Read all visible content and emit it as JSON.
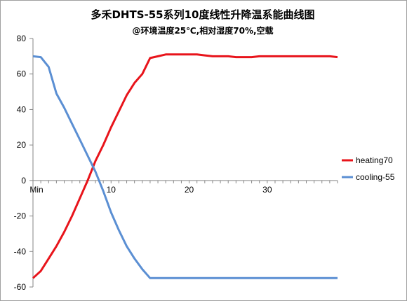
{
  "chart_data": {
    "type": "line",
    "title": "多禾DHTS-55系列10度线性升降温系能曲线图",
    "subtitle": "@环境温度25℃,相对湿度70%,空载",
    "xlabel": "",
    "ylabel": "",
    "xlim": [
      0,
      39
    ],
    "ylim": [
      -60,
      80
    ],
    "y_ticks": [
      "80",
      "60",
      "40",
      "20",
      "0",
      "-20",
      "-40",
      "-60"
    ],
    "x_ticks": [
      {
        "value": 0,
        "label": "Min"
      },
      {
        "value": 10,
        "label": "10"
      },
      {
        "value": 20,
        "label": "20"
      },
      {
        "value": 30,
        "label": "30"
      }
    ],
    "grid": false,
    "legend_position": "right",
    "series": [
      {
        "name": "heating70",
        "color": "#e8141b",
        "points": [
          [
            0,
            -55
          ],
          [
            1,
            -51
          ],
          [
            2,
            -44
          ],
          [
            3,
            -37
          ],
          [
            4,
            -29
          ],
          [
            5,
            -20
          ],
          [
            6,
            -10
          ],
          [
            7,
            0
          ],
          [
            8,
            11
          ],
          [
            9,
            20
          ],
          [
            10,
            30
          ],
          [
            11,
            39
          ],
          [
            12,
            48
          ],
          [
            13,
            55
          ],
          [
            14,
            60
          ],
          [
            15,
            69
          ],
          [
            16,
            70
          ],
          [
            17,
            71
          ],
          [
            18,
            71
          ],
          [
            19,
            71
          ],
          [
            20,
            71
          ],
          [
            21,
            71
          ],
          [
            22,
            70.5
          ],
          [
            23,
            70
          ],
          [
            24,
            70
          ],
          [
            25,
            70
          ],
          [
            26,
            69.5
          ],
          [
            27,
            69.5
          ],
          [
            28,
            69.5
          ],
          [
            29,
            70
          ],
          [
            30,
            70
          ],
          [
            31,
            70
          ],
          [
            32,
            70
          ],
          [
            33,
            70
          ],
          [
            34,
            70
          ],
          [
            35,
            70
          ],
          [
            36,
            70
          ],
          [
            37,
            70
          ],
          [
            38,
            70
          ],
          [
            39,
            69.5
          ]
        ]
      },
      {
        "name": "cooling-55",
        "color": "#5b8fd3",
        "points": [
          [
            0,
            70
          ],
          [
            1,
            69.5
          ],
          [
            2,
            64
          ],
          [
            3,
            49
          ],
          [
            4,
            41
          ],
          [
            5,
            32
          ],
          [
            6,
            23
          ],
          [
            7,
            14
          ],
          [
            8,
            5
          ],
          [
            9,
            -6
          ],
          [
            10,
            -18
          ],
          [
            11,
            -28
          ],
          [
            12,
            -37
          ],
          [
            13,
            -44
          ],
          [
            14,
            -50
          ],
          [
            15,
            -55
          ],
          [
            16,
            -55
          ],
          [
            17,
            -55
          ],
          [
            18,
            -55
          ],
          [
            19,
            -55
          ],
          [
            20,
            -55
          ],
          [
            21,
            -55
          ],
          [
            22,
            -55
          ],
          [
            23,
            -55
          ],
          [
            24,
            -55
          ],
          [
            25,
            -55
          ],
          [
            26,
            -55
          ],
          [
            27,
            -55
          ],
          [
            28,
            -55
          ],
          [
            29,
            -55
          ],
          [
            30,
            -55
          ],
          [
            31,
            -55
          ],
          [
            32,
            -55
          ],
          [
            33,
            -55
          ],
          [
            34,
            -55
          ],
          [
            35,
            -55
          ],
          [
            36,
            -55
          ],
          [
            37,
            -55
          ],
          [
            38,
            -55
          ],
          [
            39,
            -55
          ]
        ]
      }
    ]
  }
}
